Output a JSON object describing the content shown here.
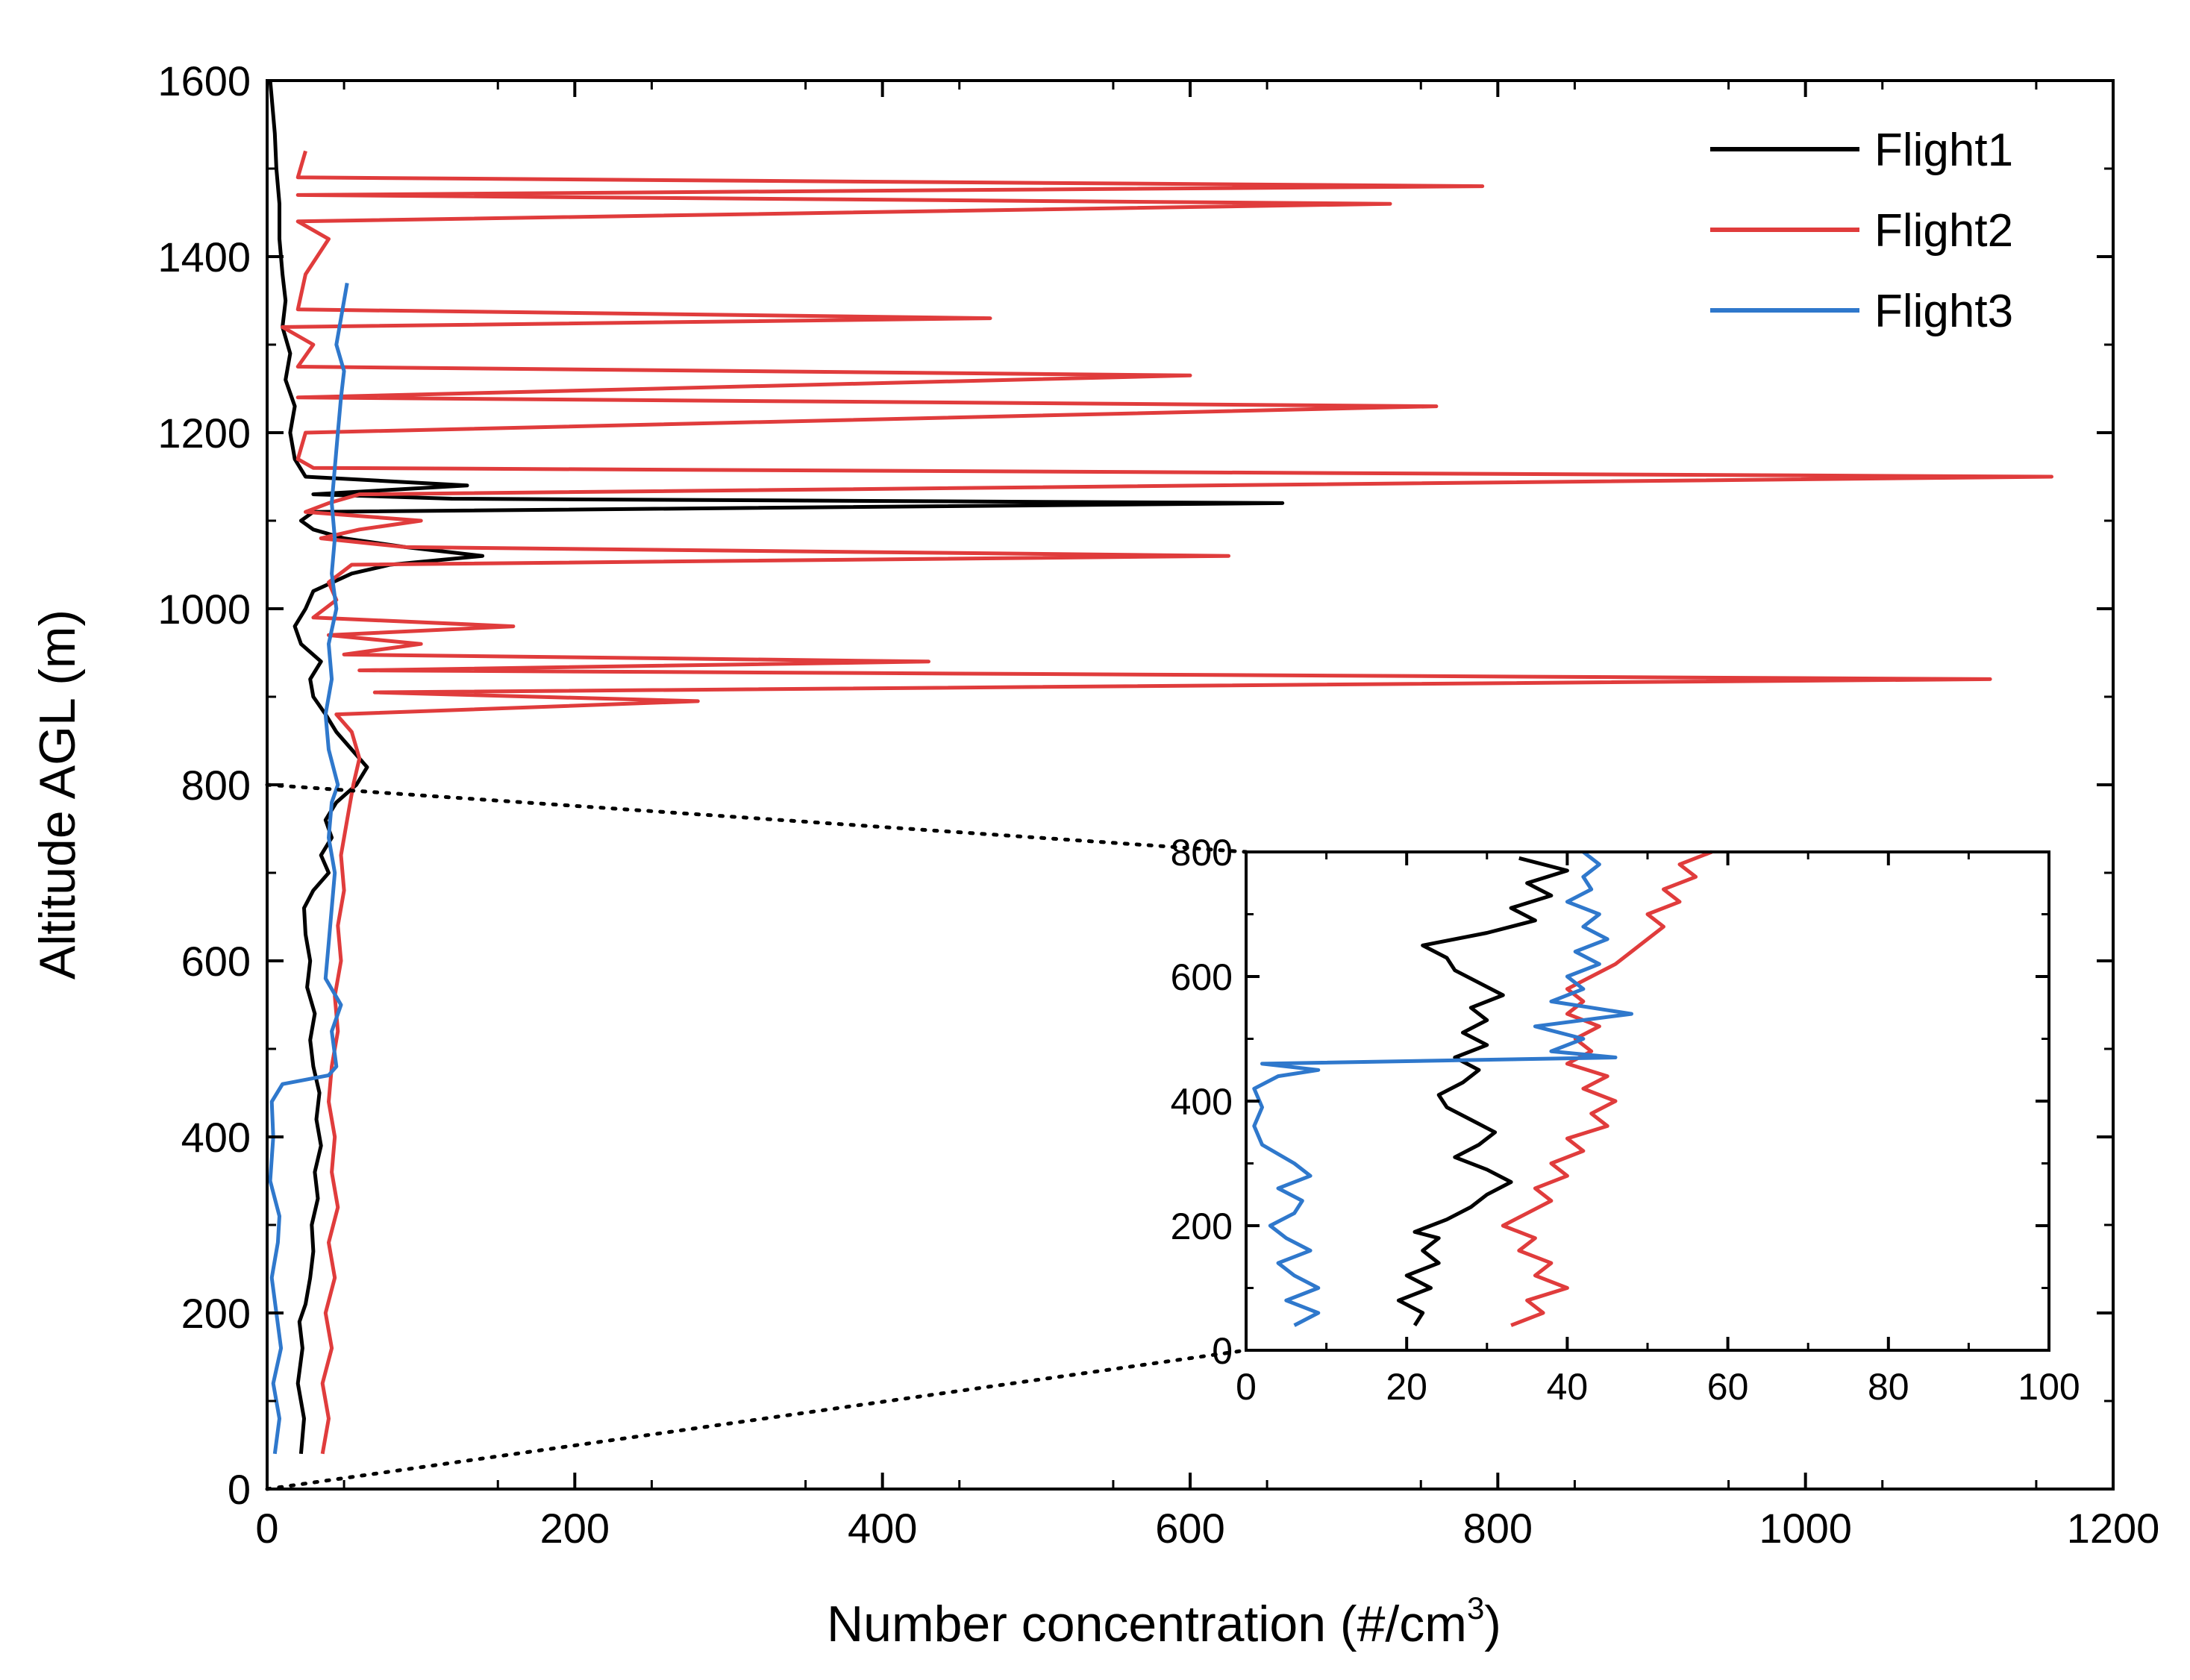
{
  "chart_data": {
    "type": "line",
    "xlabel_main": "Number concentration (#/cm",
    "xlabel_sup": "3",
    "xlabel_tail": ")",
    "ylabel": "Altitude AGL (m)",
    "xlim": [
      0,
      1200
    ],
    "ylim": [
      0,
      1600
    ],
    "x_ticks": [
      "0",
      "200",
      "400",
      "600",
      "800",
      "1000",
      "1200"
    ],
    "y_ticks": [
      "0",
      "200",
      "400",
      "600",
      "800",
      "1000",
      "1200",
      "1400",
      "1600"
    ],
    "legend_position": "top-right",
    "series": [
      {
        "name": "Flight1",
        "color": "#000000",
        "points": [
          [
            22,
            40
          ],
          [
            24,
            80
          ],
          [
            20,
            120
          ],
          [
            23,
            160
          ],
          [
            21,
            190
          ],
          [
            25,
            210
          ],
          [
            28,
            240
          ],
          [
            30,
            270
          ],
          [
            29,
            300
          ],
          [
            33,
            330
          ],
          [
            31,
            360
          ],
          [
            35,
            390
          ],
          [
            32,
            420
          ],
          [
            34,
            450
          ],
          [
            30,
            480
          ],
          [
            28,
            510
          ],
          [
            31,
            540
          ],
          [
            26,
            570
          ],
          [
            28,
            600
          ],
          [
            25,
            630
          ],
          [
            24,
            660
          ],
          [
            30,
            680
          ],
          [
            40,
            700
          ],
          [
            35,
            720
          ],
          [
            42,
            740
          ],
          [
            38,
            760
          ],
          [
            45,
            780
          ],
          [
            58,
            800
          ],
          [
            65,
            820
          ],
          [
            55,
            840
          ],
          [
            45,
            860
          ],
          [
            38,
            880
          ],
          [
            30,
            900
          ],
          [
            28,
            920
          ],
          [
            35,
            940
          ],
          [
            22,
            960
          ],
          [
            18,
            980
          ],
          [
            25,
            1000
          ],
          [
            30,
            1020
          ],
          [
            55,
            1040
          ],
          [
            80,
            1050
          ],
          [
            140,
            1060
          ],
          [
            90,
            1070
          ],
          [
            50,
            1080
          ],
          [
            30,
            1090
          ],
          [
            22,
            1100
          ],
          [
            30,
            1110
          ],
          [
            660,
            1120
          ],
          [
            120,
            1125
          ],
          [
            30,
            1130
          ],
          [
            130,
            1140
          ],
          [
            25,
            1150
          ],
          [
            18,
            1170
          ],
          [
            15,
            1200
          ],
          [
            18,
            1230
          ],
          [
            12,
            1260
          ],
          [
            15,
            1290
          ],
          [
            10,
            1320
          ],
          [
            12,
            1350
          ],
          [
            10,
            1380
          ],
          [
            8,
            1420
          ],
          [
            8,
            1460
          ],
          [
            6,
            1500
          ],
          [
            5,
            1540
          ],
          [
            3,
            1580
          ],
          [
            2,
            1600
          ]
        ]
      },
      {
        "name": "Flight2",
        "color": "#e03c3c",
        "points": [
          [
            36,
            40
          ],
          [
            40,
            80
          ],
          [
            36,
            120
          ],
          [
            42,
            160
          ],
          [
            38,
            200
          ],
          [
            44,
            240
          ],
          [
            40,
            280
          ],
          [
            46,
            320
          ],
          [
            42,
            360
          ],
          [
            44,
            400
          ],
          [
            40,
            440
          ],
          [
            42,
            480
          ],
          [
            46,
            520
          ],
          [
            44,
            560
          ],
          [
            48,
            600
          ],
          [
            46,
            640
          ],
          [
            50,
            680
          ],
          [
            48,
            720
          ],
          [
            52,
            760
          ],
          [
            56,
            800
          ],
          [
            60,
            830
          ],
          [
            55,
            860
          ],
          [
            45,
            880
          ],
          [
            280,
            895
          ],
          [
            70,
            905
          ],
          [
            1120,
            920
          ],
          [
            60,
            930
          ],
          [
            430,
            940
          ],
          [
            50,
            948
          ],
          [
            100,
            960
          ],
          [
            40,
            970
          ],
          [
            160,
            980
          ],
          [
            30,
            990
          ],
          [
            45,
            1010
          ],
          [
            40,
            1030
          ],
          [
            55,
            1050
          ],
          [
            625,
            1060
          ],
          [
            90,
            1070
          ],
          [
            35,
            1080
          ],
          [
            60,
            1090
          ],
          [
            100,
            1100
          ],
          [
            25,
            1110
          ],
          [
            40,
            1120
          ],
          [
            60,
            1130
          ],
          [
            1160,
            1150
          ],
          [
            30,
            1160
          ],
          [
            20,
            1170
          ],
          [
            25,
            1200
          ],
          [
            760,
            1230
          ],
          [
            20,
            1240
          ],
          [
            600,
            1265
          ],
          [
            20,
            1275
          ],
          [
            30,
            1300
          ],
          [
            10,
            1320
          ],
          [
            470,
            1330
          ],
          [
            20,
            1340
          ],
          [
            25,
            1380
          ],
          [
            40,
            1420
          ],
          [
            20,
            1440
          ],
          [
            730,
            1460
          ],
          [
            20,
            1470
          ],
          [
            790,
            1480
          ],
          [
            20,
            1490
          ],
          [
            25,
            1520
          ]
        ]
      },
      {
        "name": "Flight3",
        "color": "#2f78cc",
        "points": [
          [
            5,
            40
          ],
          [
            8,
            80
          ],
          [
            4,
            120
          ],
          [
            9,
            160
          ],
          [
            6,
            200
          ],
          [
            3,
            240
          ],
          [
            7,
            280
          ],
          [
            8,
            310
          ],
          [
            2,
            350
          ],
          [
            4,
            400
          ],
          [
            3,
            440
          ],
          [
            10,
            460
          ],
          [
            40,
            470
          ],
          [
            45,
            480
          ],
          [
            42,
            520
          ],
          [
            48,
            550
          ],
          [
            38,
            580
          ],
          [
            40,
            620
          ],
          [
            42,
            660
          ],
          [
            44,
            700
          ],
          [
            40,
            740
          ],
          [
            42,
            780
          ],
          [
            46,
            800
          ],
          [
            40,
            840
          ],
          [
            38,
            880
          ],
          [
            42,
            920
          ],
          [
            40,
            960
          ],
          [
            45,
            1000
          ],
          [
            42,
            1040
          ],
          [
            44,
            1080
          ],
          [
            42,
            1120
          ],
          [
            44,
            1160
          ],
          [
            46,
            1200
          ],
          [
            48,
            1240
          ],
          [
            50,
            1270
          ],
          [
            45,
            1300
          ],
          [
            48,
            1330
          ],
          [
            52,
            1370
          ]
        ]
      }
    ],
    "inset": {
      "xlim": [
        0,
        100
      ],
      "ylim": [
        0,
        800
      ],
      "x_ticks": [
        "0",
        "20",
        "40",
        "60",
        "80",
        "100"
      ],
      "y_ticks": [
        "0",
        "200",
        "400",
        "600",
        "800"
      ],
      "series": [
        {
          "name": "Flight1",
          "color": "#000000",
          "points": [
            [
              21,
              40
            ],
            [
              22,
              60
            ],
            [
              19,
              80
            ],
            [
              23,
              100
            ],
            [
              20,
              120
            ],
            [
              24,
              140
            ],
            [
              22,
              160
            ],
            [
              24,
              180
            ],
            [
              21,
              190
            ],
            [
              25,
              210
            ],
            [
              28,
              230
            ],
            [
              30,
              250
            ],
            [
              33,
              270
            ],
            [
              30,
              290
            ],
            [
              26,
              310
            ],
            [
              29,
              330
            ],
            [
              31,
              350
            ],
            [
              28,
              370
            ],
            [
              25,
              390
            ],
            [
              24,
              410
            ],
            [
              27,
              430
            ],
            [
              29,
              450
            ],
            [
              26,
              470
            ],
            [
              30,
              490
            ],
            [
              27,
              510
            ],
            [
              30,
              530
            ],
            [
              28,
              550
            ],
            [
              32,
              570
            ],
            [
              29,
              590
            ],
            [
              26,
              610
            ],
            [
              25,
              630
            ],
            [
              22,
              650
            ],
            [
              30,
              670
            ],
            [
              36,
              690
            ],
            [
              33,
              710
            ],
            [
              38,
              730
            ],
            [
              35,
              750
            ],
            [
              40,
              770
            ],
            [
              34,
              790
            ]
          ]
        },
        {
          "name": "Flight2",
          "color": "#e03c3c",
          "points": [
            [
              33,
              40
            ],
            [
              37,
              60
            ],
            [
              35,
              80
            ],
            [
              40,
              100
            ],
            [
              36,
              120
            ],
            [
              38,
              140
            ],
            [
              34,
              160
            ],
            [
              36,
              180
            ],
            [
              32,
              200
            ],
            [
              35,
              220
            ],
            [
              38,
              240
            ],
            [
              36,
              260
            ],
            [
              40,
              280
            ],
            [
              38,
              300
            ],
            [
              42,
              320
            ],
            [
              40,
              340
            ],
            [
              45,
              360
            ],
            [
              43,
              380
            ],
            [
              46,
              400
            ],
            [
              42,
              420
            ],
            [
              45,
              440
            ],
            [
              40,
              460
            ],
            [
              43,
              480
            ],
            [
              41,
              500
            ],
            [
              44,
              520
            ],
            [
              40,
              540
            ],
            [
              42,
              560
            ],
            [
              40,
              580
            ],
            [
              43,
              600
            ],
            [
              46,
              620
            ],
            [
              48,
              640
            ],
            [
              50,
              660
            ],
            [
              52,
              680
            ],
            [
              50,
              700
            ],
            [
              54,
              720
            ],
            [
              52,
              740
            ],
            [
              56,
              760
            ],
            [
              54,
              780
            ],
            [
              58,
              800
            ]
          ]
        },
        {
          "name": "Flight3",
          "color": "#2f78cc",
          "points": [
            [
              6,
              40
            ],
            [
              9,
              60
            ],
            [
              5,
              80
            ],
            [
              9,
              100
            ],
            [
              6,
              120
            ],
            [
              4,
              140
            ],
            [
              8,
              160
            ],
            [
              5,
              180
            ],
            [
              3,
              200
            ],
            [
              6,
              220
            ],
            [
              7,
              240
            ],
            [
              4,
              260
            ],
            [
              8,
              280
            ],
            [
              6,
              300
            ],
            [
              2,
              330
            ],
            [
              1,
              360
            ],
            [
              2,
              390
            ],
            [
              1,
              420
            ],
            [
              4,
              440
            ],
            [
              9,
              450
            ],
            [
              2,
              460
            ],
            [
              46,
              470
            ],
            [
              38,
              480
            ],
            [
              42,
              500
            ],
            [
              36,
              520
            ],
            [
              48,
              540
            ],
            [
              38,
              560
            ],
            [
              42,
              580
            ],
            [
              40,
              600
            ],
            [
              44,
              620
            ],
            [
              41,
              640
            ],
            [
              45,
              660
            ],
            [
              42,
              680
            ],
            [
              44,
              700
            ],
            [
              40,
              720
            ],
            [
              43,
              740
            ],
            [
              42,
              760
            ],
            [
              44,
              780
            ],
            [
              42,
              800
            ]
          ]
        }
      ]
    }
  }
}
